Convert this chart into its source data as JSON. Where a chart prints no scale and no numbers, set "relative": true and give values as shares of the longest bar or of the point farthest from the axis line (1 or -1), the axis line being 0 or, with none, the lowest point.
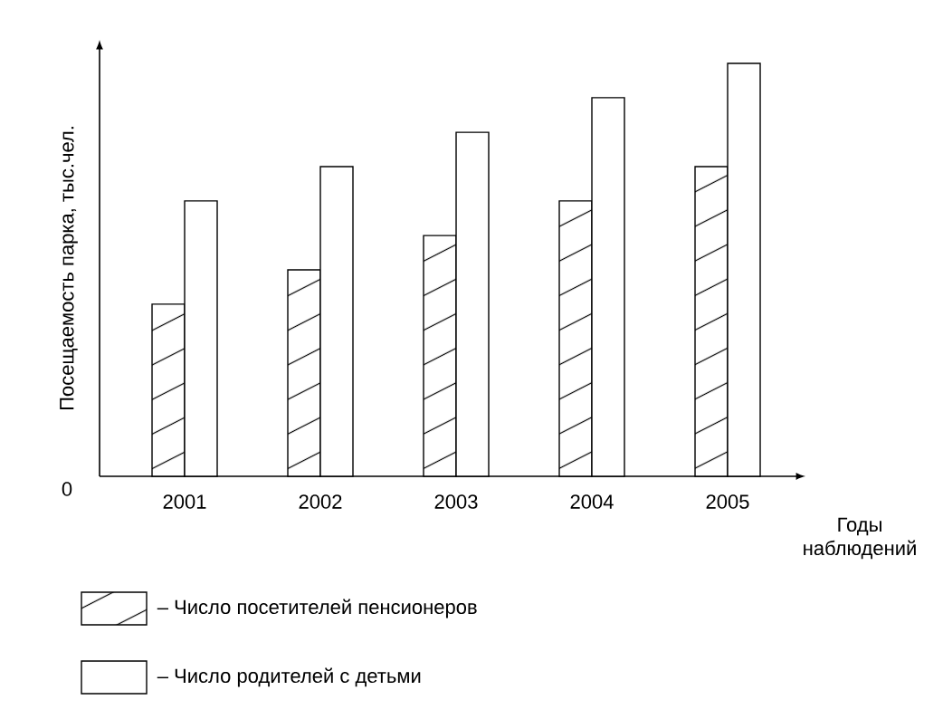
{
  "chart_data": {
    "type": "bar",
    "relative": true,
    "ylabel": "Посещаемость парка, тыс.чел.",
    "xlabel": "Годы наблюдений",
    "categories": [
      "2001",
      "2002",
      "2003",
      "2004",
      "2005"
    ],
    "series": [
      {
        "name": "– Число посетителей пенсионеров",
        "color": "#ffffff",
        "values": [
          0.417,
          0.5,
          0.583,
          0.667,
          0.75
        ]
      },
      {
        "name": "– Число родителей с детьми",
        "color": "#ffffff",
        "values": [
          0.667,
          0.75,
          0.833,
          0.917,
          1.0
        ]
      }
    ],
    "annotations": [
      "0"
    ],
    "legend": "bottom left",
    "grid": false
  }
}
